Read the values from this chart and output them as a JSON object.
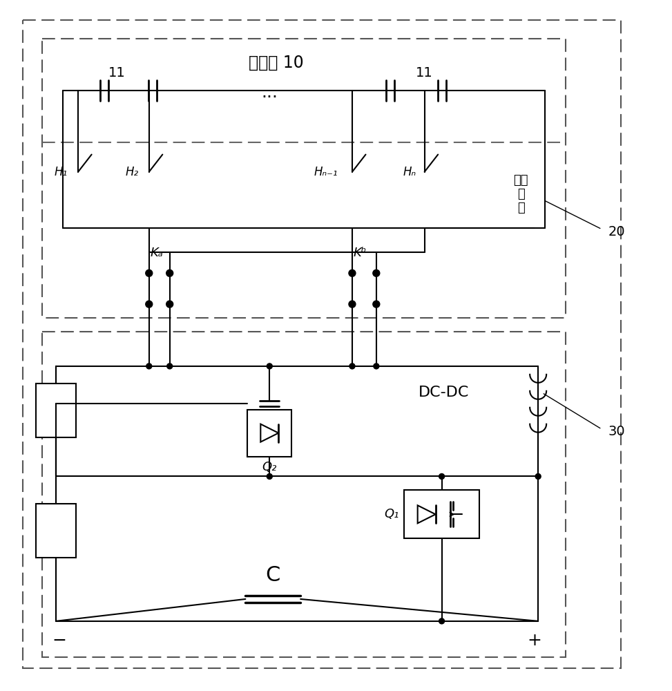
{
  "bg_color": "#ffffff",
  "line_color": "#000000",
  "dashed_color": "#666666",
  "fig_width": 9.73,
  "fig_height": 10.0,
  "labels": {
    "battery_group": "电池组 10",
    "label_11_left": "11",
    "label_11_right": "11",
    "H1": "H₁",
    "H2": "H₂",
    "Hn1": "Hₙ₋₁",
    "Hn": "Hₙ",
    "switch_array_1": "开关",
    "switch_array_2": "阵",
    "switch_array_3": "列",
    "label_20": "20",
    "Ka": "Kₐ",
    "Kb": "Kᵇ",
    "DCDC": "DC-DC",
    "Q1": "Q₁",
    "Q2": "Q₂",
    "C": "C",
    "label_30": "30",
    "minus": "−",
    "plus": "+"
  }
}
